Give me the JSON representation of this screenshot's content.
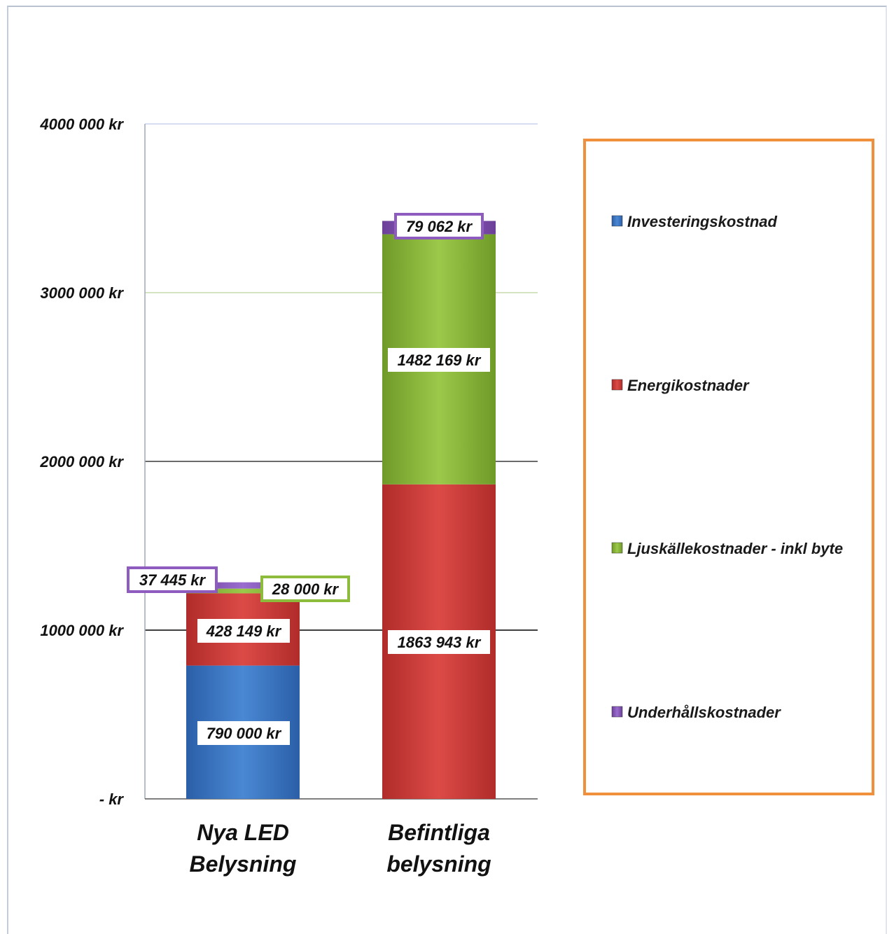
{
  "chart_data": {
    "type": "bar",
    "stacked": true,
    "categories": [
      "Nya LED Belysning",
      "Befintliga belysning"
    ],
    "category_lines": [
      [
        "Nya LED",
        "Belysning"
      ],
      [
        "Befintliga",
        "belysning"
      ]
    ],
    "series": [
      {
        "name": "Investeringskostnad",
        "color": "#3a78c8",
        "values": [
          790000,
          0
        ],
        "labels": [
          "790 000 kr",
          ""
        ]
      },
      {
        "name": "Energikostnader",
        "color": "#d23c3a",
        "values": [
          428149,
          1863943
        ],
        "labels": [
          "428 149 kr",
          "1863 943 kr"
        ]
      },
      {
        "name": "Ljuskällekostnader - inkl byte",
        "color": "#8dbb3c",
        "values": [
          28000,
          1482169
        ],
        "labels": [
          "28 000 kr",
          "1482 169 kr"
        ]
      },
      {
        "name": "Underhållskostnader",
        "color": "#8e5cbf",
        "values": [
          37445,
          79062
        ],
        "labels": [
          "37 445 kr",
          "79 062 kr"
        ]
      }
    ],
    "ylim": [
      0,
      4000000
    ],
    "yticks": [
      0,
      1000000,
      2000000,
      3000000,
      4000000
    ],
    "ytick_labels": [
      "-   kr",
      "1000 000 kr",
      "2000 000 kr",
      "3000 000 kr",
      "4000 000 kr"
    ],
    "grid": true,
    "legend_position": "right",
    "legend_border_color": "#f0903c",
    "title": "",
    "xlabel": "",
    "ylabel": ""
  }
}
